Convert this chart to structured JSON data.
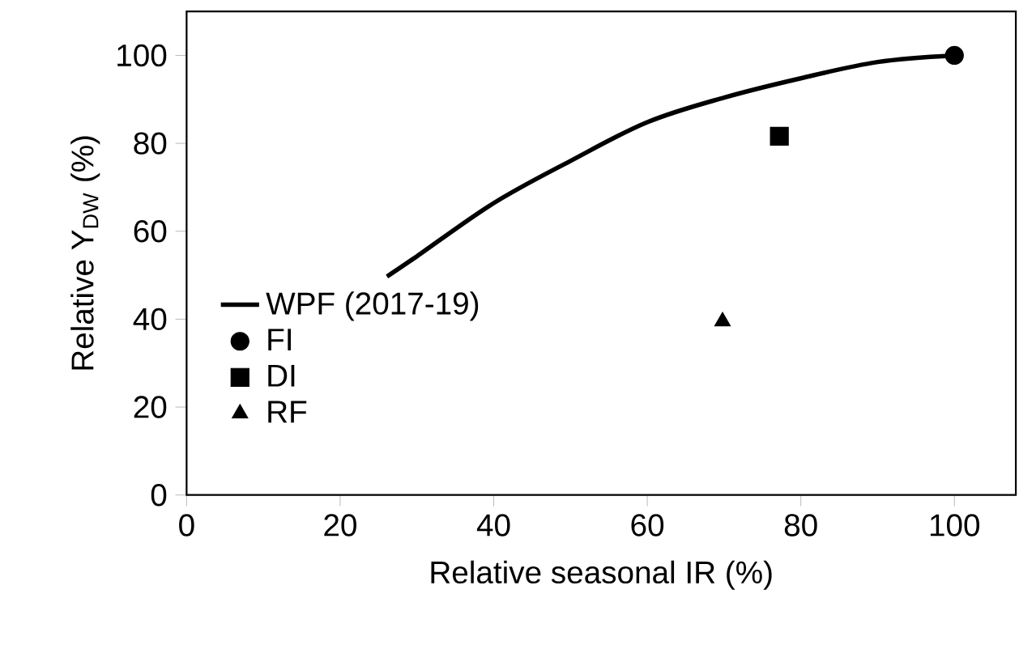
{
  "chart_data": {
    "type": "scatter",
    "xlabel": "Relative seasonal IR (%)",
    "ylabel": "Relative Y$_{DW}$ (%)",
    "xlim": [
      0,
      108
    ],
    "ylim": [
      0,
      110
    ],
    "xticks": [
      0,
      20,
      40,
      60,
      80,
      100
    ],
    "yticks": [
      0,
      20,
      40,
      60,
      80,
      100
    ],
    "grid": false,
    "legend": "left",
    "series": [
      {
        "name": "WPF (2017-19)",
        "type": "line",
        "color": "#000000",
        "marker": "none",
        "line_style": "solid",
        "x": [
          26.1,
          30,
          40,
          50,
          60,
          70,
          80,
          90,
          100
        ],
        "values": [
          49.7,
          54.3,
          66.4,
          76,
          84.8,
          90.4,
          94.8,
          98.5,
          100
        ]
      },
      {
        "name": "FI",
        "color": "#000000",
        "marker": "circle",
        "x": [
          100
        ],
        "values": [
          100
        ]
      },
      {
        "name": "DI",
        "color": "#000000",
        "marker": "square",
        "x": [
          77.2
        ],
        "values": [
          81.6
        ]
      },
      {
        "name": "RF",
        "color": "#000000",
        "marker": "triangle",
        "x": [
          69.8
        ],
        "values": [
          39.5
        ]
      }
    ]
  }
}
